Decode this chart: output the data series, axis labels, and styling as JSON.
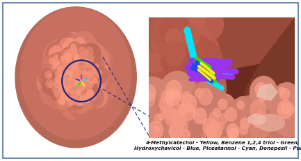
{
  "figure_bg": "#ffffff",
  "border_color": "#4a6fa5",
  "border_lw": 1.2,
  "protein_base": "#c87c6a",
  "protein_light": "#e8b0a0",
  "protein_shadow": "#a05545",
  "circle_color": "#1a2580",
  "caption_text": "4-Methylcatechol - Yellow, Benzene 1,2,4 triol - Green,\nHydroxychavicol - Blue, Piceatannol - Cyan, Donepezil - Purple",
  "caption_fontsize": 5.2,
  "cavity_bg": "#6b2a1e",
  "cavity_wall": "#b06050",
  "cavity_light": "#d4907a",
  "mol_cyan": "#00e5ff",
  "mol_purple": "#9933ee",
  "mol_green": "#33dd00",
  "mol_yellow": "#ffee00",
  "mol_blue": "#2244ff"
}
